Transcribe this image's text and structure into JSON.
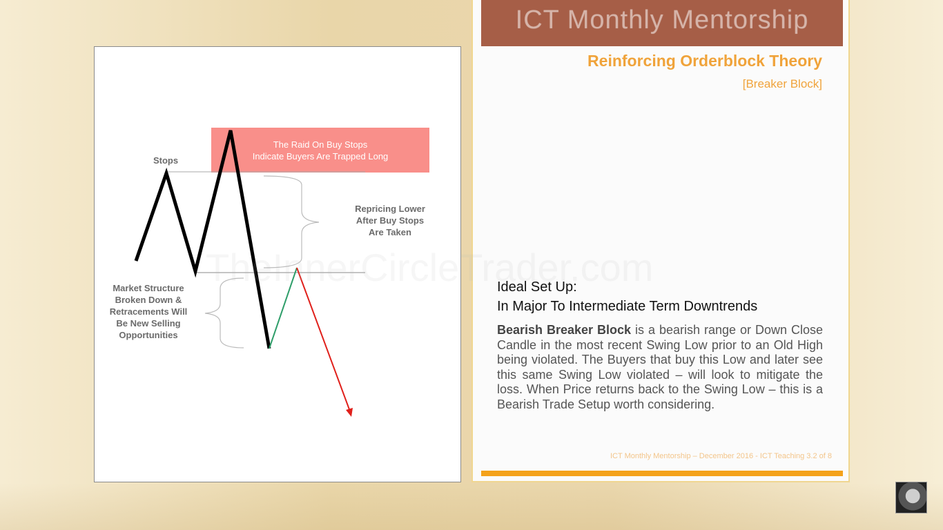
{
  "header": {
    "title": "ICT Monthly Mentorship"
  },
  "subtitle": "Reinforcing Orderblock Theory",
  "subtag": "[Breaker Block]",
  "diagram": {
    "stops_label": "Stops",
    "raid_box": {
      "line1": "The Raid On Buy Stops",
      "line2": "Indicate Buyers Are Trapped Long"
    },
    "repricing_label": {
      "line1": "Repricing Lower",
      "line2": "After Buy Stops",
      "line3": "Are Taken"
    },
    "structure_label": {
      "line1": "Market Structure",
      "line2": "Broken Down &",
      "line3": "Retracements Will",
      "line4": "Be New Selling",
      "line5": "Opportunities"
    },
    "colors": {
      "raid_box": "#f98f8a",
      "price_line": "#000000",
      "retracement": "#2f9e6a",
      "projection": "#e0201b"
    }
  },
  "watermark": "TheInnerCircleTrader.com",
  "setup": {
    "line1": "Ideal Set Up:",
    "line2": "In Major To Intermediate Term Downtrends"
  },
  "description": {
    "term": "Bearish Breaker Block",
    "body": " is a bearish range or Down Close Candle in the most recent Swing Low prior to an Old High being violated.  The Buyers that buy this Low and later see this same Swing Low violated – will look to mitigate the loss.  When Price returns back to the Swing Low – this is a Bearish Trade Setup worth considering."
  },
  "footer_note": "ICT Monthly Mentorship – December 2016 - ICT Teaching 3.2 of 8"
}
